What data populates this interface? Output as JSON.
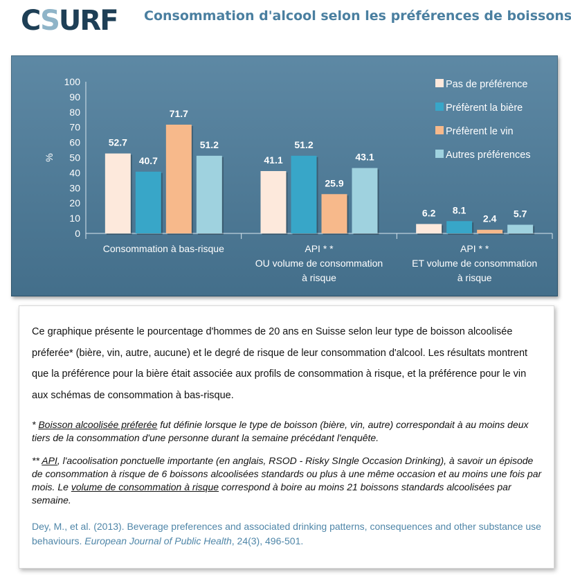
{
  "header": {
    "logo_text": "CSURF",
    "logo_colors": {
      "dark": "#1e3f56",
      "light": "#8fb4c8"
    },
    "title": "Consommation d'alcool selon les préférences de boissons"
  },
  "chart_data": {
    "type": "bar",
    "title": "",
    "xlabel": "",
    "ylabel": "%",
    "ylim": [
      0,
      100
    ],
    "yticks": [
      0,
      10,
      20,
      30,
      40,
      50,
      60,
      70,
      80,
      90,
      100
    ],
    "legend_position": "top-right",
    "background_color": "#4b7b9a",
    "categories": [
      [
        "Consommation à bas-risque"
      ],
      [
        "API * *",
        "OU volume de consommation",
        "à risque"
      ],
      [
        "API * *",
        "ET volume de consommation",
        "à risque"
      ]
    ],
    "series": [
      {
        "name": "Pas de préférence",
        "color": "#fde9dc",
        "values": [
          52.7,
          41.1,
          6.2
        ]
      },
      {
        "name": "Préfèrent la bière",
        "color": "#38a6c8",
        "values": [
          40.7,
          51.2,
          8.1
        ]
      },
      {
        "name": "Préfèrent le vin",
        "color": "#f7b98b",
        "values": [
          71.7,
          25.9,
          2.4
        ]
      },
      {
        "name": "Autres préférences",
        "color": "#9fd2df",
        "values": [
          51.2,
          43.1,
          5.7
        ]
      }
    ]
  },
  "description": {
    "text": "Ce graphique présente le pourcentage d'hommes de 20 ans en Suisse selon leur type de boisson alcoolisée préferée* (bière, vin, autre, aucune) et le degré de risque de leur consommation d'alcool. Les résultats montrent que la préférence pour la bière était associée aux profils de consommation à risque, et la préférence pour le vin aux schémas de consommation à bas-risque.",
    "footnote1_marker": "* ",
    "footnote1_term": "Boisson alcoolisée préferée",
    "footnote1_text": " fut définie lorsque le type de boisson (bière, vin, autre) correspondait à au moins deux tiers de la consommation d'une personne durant la semaine précédant l'enquête.",
    "footnote2_marker": "** ",
    "footnote2_term": "API",
    "footnote2_text": ", l'acoolisation ponctuelle importante (en anglais, RSOD - Risky SIngle Occasion Drinking), à savoir un épisode de consommation à risque de 6 boissons alcoolisées standards ou plus à une même occasion et au moins une fois par mois. Le ",
    "footnote2_term2": "volume de consommation à risque",
    "footnote2_text2": " correspond à boire au moins 21 boissons standards alcoolisées par semaine.",
    "citation_text": "Dey, M., et al. (2013). Beverage preferences and associated drinking patterns, consequences and other substance use behaviours. ",
    "citation_journal": "European Journal of Public Health",
    "citation_rest": ", 24(3), 496-501."
  }
}
